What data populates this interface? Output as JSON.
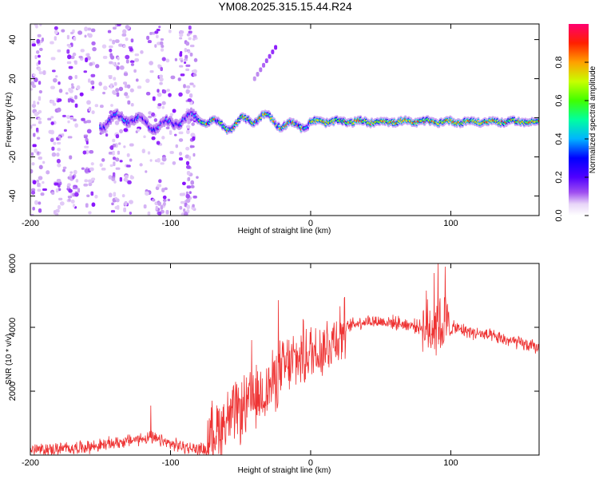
{
  "title": "YM08.2025.315.15.44.R24",
  "colors": {
    "snr_line": "#ee3333",
    "frame": "#000000",
    "colormap": [
      "#f2e6fb",
      "#c08ff0",
      "#8000ff",
      "#0000ff",
      "#00c8ff",
      "#00ff80",
      "#80ff00",
      "#ffe000",
      "#ff4000",
      "#ff0060"
    ]
  },
  "chart_data": [
    {
      "type": "heatmap",
      "xlabel": "Height of straight line (km)",
      "ylabel": "Frequency (Hz)",
      "xlim": [
        -200,
        163
      ],
      "ylim": [
        -50,
        48
      ],
      "x_ticks": [
        -200,
        -100,
        0,
        100
      ],
      "y_ticks": [
        -40,
        -20,
        0,
        20,
        40
      ],
      "colorbar": {
        "label": "Normalized spectral amplitude",
        "range": [
          0,
          1
        ],
        "ticks": [
          "0.0",
          "0.2",
          "0.4",
          "0.6",
          "0.8"
        ]
      },
      "ridge": {
        "x_start": -150,
        "x_end": 163,
        "center_freq_hz": -2,
        "high_amplitude_from_x": -80,
        "peak_amplitude": 0.95
      },
      "noise_region_x": [
        -200,
        -80
      ],
      "noise_streak_x": [
        -195,
        -182,
        -170,
        -158,
        -140,
        -130,
        -107,
        -90,
        -85
      ],
      "feature": {
        "x": [
          -40,
          -25
        ],
        "y": [
          20,
          36
        ]
      }
    },
    {
      "type": "line",
      "xlabel": "Height of straight line (km)",
      "ylabel": "SNR (10 * v/v)",
      "xlim": [
        -200,
        163
      ],
      "ylim": [
        0,
        6000
      ],
      "x_ticks": [
        -200,
        -100,
        0,
        100
      ],
      "y_ticks": [
        2000,
        4000,
        6000
      ],
      "series": [
        {
          "name": "SNR",
          "x": [
            -200,
            -175,
            -150,
            -130,
            -115,
            -100,
            -85,
            -75,
            -70,
            -60,
            -50,
            -40,
            -30,
            -20,
            -10,
            0,
            10,
            20,
            30,
            40,
            60,
            80,
            90,
            100,
            120,
            140,
            163
          ],
          "y": [
            150,
            200,
            300,
            450,
            550,
            350,
            200,
            180,
            700,
            1100,
            1400,
            1700,
            2100,
            2700,
            3000,
            3200,
            3400,
            3800,
            4100,
            4200,
            4150,
            4000,
            4050,
            4000,
            3800,
            3600,
            3350
          ],
          "spikes": [
            {
              "x": -114,
              "y": 1550
            },
            {
              "x": -42,
              "y": 3600
            },
            {
              "x": -23,
              "y": 4850
            },
            {
              "x": -5,
              "y": 4200
            },
            {
              "x": 88,
              "y": 5700
            },
            {
              "x": 91,
              "y": 6000
            },
            {
              "x": 96,
              "y": 5900
            }
          ]
        }
      ]
    }
  ]
}
